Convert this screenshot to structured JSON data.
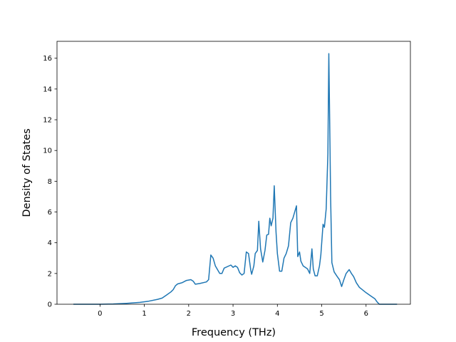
{
  "chart_data": {
    "type": "line",
    "title": "",
    "xlabel": "Frequency (THz)",
    "ylabel": "Density of States",
    "xlim": [
      -0.97,
      7.0
    ],
    "ylim": [
      0,
      17.1
    ],
    "xticks": [
      0,
      1,
      2,
      3,
      4,
      5,
      6
    ],
    "yticks": [
      0,
      2,
      4,
      6,
      8,
      10,
      12,
      14,
      16
    ],
    "grid": false,
    "legend": "none",
    "series": [
      {
        "color": "#1f77b4",
        "points": [
          [
            -0.6,
            0.0
          ],
          [
            0.0,
            0.0
          ],
          [
            0.3,
            0.02
          ],
          [
            0.6,
            0.06
          ],
          [
            0.9,
            0.12
          ],
          [
            1.1,
            0.2
          ],
          [
            1.3,
            0.32
          ],
          [
            1.4,
            0.4
          ],
          [
            1.5,
            0.6
          ],
          [
            1.6,
            0.8
          ],
          [
            1.65,
            0.95
          ],
          [
            1.7,
            1.2
          ],
          [
            1.75,
            1.32
          ],
          [
            1.85,
            1.4
          ],
          [
            1.95,
            1.55
          ],
          [
            2.05,
            1.6
          ],
          [
            2.1,
            1.5
          ],
          [
            2.15,
            1.3
          ],
          [
            2.25,
            1.35
          ],
          [
            2.4,
            1.45
          ],
          [
            2.45,
            1.6
          ],
          [
            2.5,
            3.2
          ],
          [
            2.55,
            3.0
          ],
          [
            2.6,
            2.5
          ],
          [
            2.7,
            2.0
          ],
          [
            2.75,
            2.0
          ],
          [
            2.8,
            2.35
          ],
          [
            2.95,
            2.55
          ],
          [
            3.0,
            2.4
          ],
          [
            3.05,
            2.5
          ],
          [
            3.1,
            2.4
          ],
          [
            3.15,
            2.05
          ],
          [
            3.2,
            1.9
          ],
          [
            3.25,
            2.0
          ],
          [
            3.3,
            3.4
          ],
          [
            3.35,
            3.3
          ],
          [
            3.4,
            2.2
          ],
          [
            3.42,
            1.95
          ],
          [
            3.47,
            2.5
          ],
          [
            3.5,
            3.3
          ],
          [
            3.55,
            3.5
          ],
          [
            3.58,
            5.4
          ],
          [
            3.62,
            3.6
          ],
          [
            3.67,
            2.75
          ],
          [
            3.72,
            3.5
          ],
          [
            3.76,
            4.5
          ],
          [
            3.8,
            4.55
          ],
          [
            3.83,
            5.6
          ],
          [
            3.86,
            5.1
          ],
          [
            3.9,
            5.6
          ],
          [
            3.93,
            7.7
          ],
          [
            3.97,
            4.7
          ],
          [
            4.0,
            3.3
          ],
          [
            4.05,
            2.15
          ],
          [
            4.1,
            2.15
          ],
          [
            4.15,
            3.0
          ],
          [
            4.2,
            3.3
          ],
          [
            4.25,
            3.8
          ],
          [
            4.3,
            5.3
          ],
          [
            4.35,
            5.6
          ],
          [
            4.4,
            6.1
          ],
          [
            4.43,
            6.4
          ],
          [
            4.46,
            3.1
          ],
          [
            4.5,
            3.4
          ],
          [
            4.53,
            2.8
          ],
          [
            4.58,
            2.5
          ],
          [
            4.63,
            2.4
          ],
          [
            4.68,
            2.3
          ],
          [
            4.73,
            2.0
          ],
          [
            4.78,
            3.6
          ],
          [
            4.81,
            2.3
          ],
          [
            4.85,
            1.85
          ],
          [
            4.9,
            1.85
          ],
          [
            4.95,
            2.5
          ],
          [
            4.98,
            3.2
          ],
          [
            5.03,
            5.2
          ],
          [
            5.06,
            5.0
          ],
          [
            5.1,
            6.2
          ],
          [
            5.14,
            9.8
          ],
          [
            5.16,
            16.3
          ],
          [
            5.18,
            12.0
          ],
          [
            5.2,
            7.0
          ],
          [
            5.23,
            2.7
          ],
          [
            5.28,
            2.1
          ],
          [
            5.35,
            1.8
          ],
          [
            5.4,
            1.6
          ],
          [
            5.45,
            1.15
          ],
          [
            5.5,
            1.6
          ],
          [
            5.55,
            2.0
          ],
          [
            5.62,
            2.25
          ],
          [
            5.67,
            2.0
          ],
          [
            5.72,
            1.8
          ],
          [
            5.78,
            1.4
          ],
          [
            5.85,
            1.1
          ],
          [
            6.0,
            0.75
          ],
          [
            6.1,
            0.55
          ],
          [
            6.2,
            0.35
          ],
          [
            6.25,
            0.15
          ],
          [
            6.3,
            0.0
          ],
          [
            6.7,
            0.0
          ]
        ]
      }
    ]
  }
}
